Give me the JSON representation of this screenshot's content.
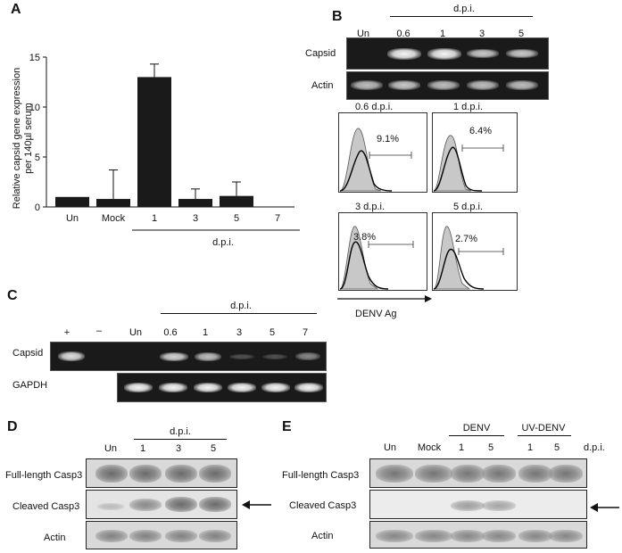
{
  "panels": {
    "A": {
      "label": "A",
      "ylabel_line1": "Relative capsid gene expression",
      "ylabel_line2": "per 140µl serum",
      "yticks": [
        "15",
        "10",
        "5",
        "0"
      ],
      "categories": [
        "Un",
        "Mock",
        "1",
        "3",
        "5",
        "7"
      ],
      "group_label": "d.p.i."
    },
    "B": {
      "label": "B",
      "group_label": "d.p.i.",
      "lanes": [
        "Un",
        "0.6",
        "1",
        "3",
        "5"
      ],
      "rows": [
        "Capsid",
        "Actin"
      ],
      "histograms": [
        {
          "title": "0.6 d.p.i.",
          "percent": "9.1%"
        },
        {
          "title": "1 d.p.i.",
          "percent": "6.4%"
        },
        {
          "title": "3 d.p.i.",
          "percent": "3.8%"
        },
        {
          "title": "5 d.p.i.",
          "percent": "2.7%"
        }
      ],
      "axis_label": "DENV Ag"
    },
    "C": {
      "label": "C",
      "group_label": "d.p.i.",
      "lanes": [
        "+",
        "–",
        "Un",
        "0.6",
        "1",
        "3",
        "5",
        "7"
      ],
      "rows": [
        "Capsid",
        "GAPDH"
      ]
    },
    "D": {
      "label": "D",
      "group_label": "d.p.i.",
      "lanes": [
        "Un",
        "1",
        "3",
        "5"
      ],
      "rows": [
        "Full-length Casp3",
        "Cleaved Casp3",
        "Actin"
      ]
    },
    "E": {
      "label": "E",
      "lanes": [
        "Un",
        "Mock",
        "1",
        "5",
        "1",
        "5"
      ],
      "groups": [
        "DENV",
        "UV-DENV"
      ],
      "unit": "d.p.i.",
      "rows": [
        "Full-length Casp3",
        "Cleaved Casp3",
        "Actin"
      ]
    }
  },
  "chart_data": {
    "type": "bar",
    "categories": [
      "Un",
      "Mock",
      "1",
      "3",
      "5",
      "7"
    ],
    "values": [
      1.0,
      0.8,
      13.0,
      0.8,
      1.1,
      0.0
    ],
    "error_up": [
      0.0,
      2.9,
      1.3,
      1.0,
      1.4,
      0.0
    ],
    "ylabel": "Relative capsid gene expression per 140µl serum",
    "ylim": [
      0,
      15
    ],
    "yticks": [
      0,
      5,
      10,
      15
    ]
  }
}
